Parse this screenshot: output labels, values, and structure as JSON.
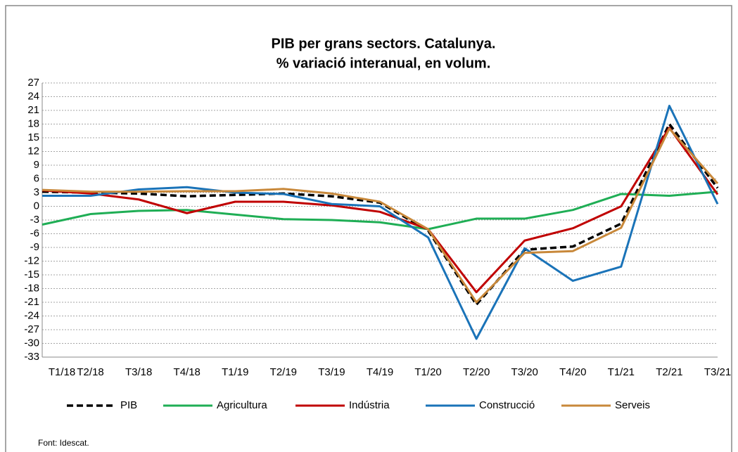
{
  "chart_data": {
    "type": "line",
    "title": "PIB per grans sectors. Catalunya.",
    "subtitle": "% variació interanual, en volum.",
    "note": "Font: Idescat.",
    "categories": [
      "T1/18",
      "T2/18",
      "T3/18",
      "T4/18",
      "T1/19",
      "T2/19",
      "T3/19",
      "T4/19",
      "T1/20",
      "T2/20",
      "T3/20",
      "T4/20",
      "T1/21",
      "T2/21",
      "T3/21"
    ],
    "series": [
      {
        "name": "PIB",
        "color": "#000000",
        "dashed": true,
        "values": [
          3.2,
          3.0,
          2.8,
          2.2,
          2.5,
          2.8,
          2.2,
          0.8,
          -5.3,
          -21.5,
          -9.5,
          -8.8,
          -3.8,
          18,
          4
        ]
      },
      {
        "name": "Agricultura",
        "color": "#1fae55",
        "values": [
          -4,
          -1.7,
          -1.0,
          -0.8,
          -1.8,
          -2.8,
          -3.0,
          -3.5,
          -5.0,
          -2.7,
          -2.7,
          -0.8,
          2.7,
          2.3,
          3.2
        ]
      },
      {
        "name": "Indústria",
        "color": "#c00000",
        "values": [
          3.5,
          2.8,
          1.5,
          -1.5,
          1.0,
          1.0,
          0.2,
          -1.2,
          -5.0,
          -18.8,
          -7.5,
          -4.8,
          0.0,
          17.2,
          2.6
        ]
      },
      {
        "name": "Construcció",
        "color": "#1a73b8",
        "values": [
          2.3,
          2.3,
          3.7,
          4.2,
          3.0,
          2.7,
          0.5,
          0.0,
          -6.8,
          -29,
          -9.2,
          -16.3,
          -13.2,
          22,
          0.5
        ]
      },
      {
        "name": "Serveis",
        "color": "#c8883a",
        "values": [
          3.6,
          3.2,
          3.2,
          3.3,
          3.3,
          3.8,
          2.8,
          1.0,
          -5.0,
          -21,
          -10.2,
          -9.8,
          -4.7,
          17,
          5
        ]
      }
    ],
    "ylim": [
      -33,
      27
    ],
    "yticks": [
      -33,
      -30,
      -27,
      -24,
      -21,
      -18,
      -15,
      -12,
      -9,
      -6,
      -3,
      0,
      3,
      6,
      9,
      12,
      15,
      18,
      21,
      24,
      27
    ],
    "grid": true,
    "legend": "bottom"
  }
}
